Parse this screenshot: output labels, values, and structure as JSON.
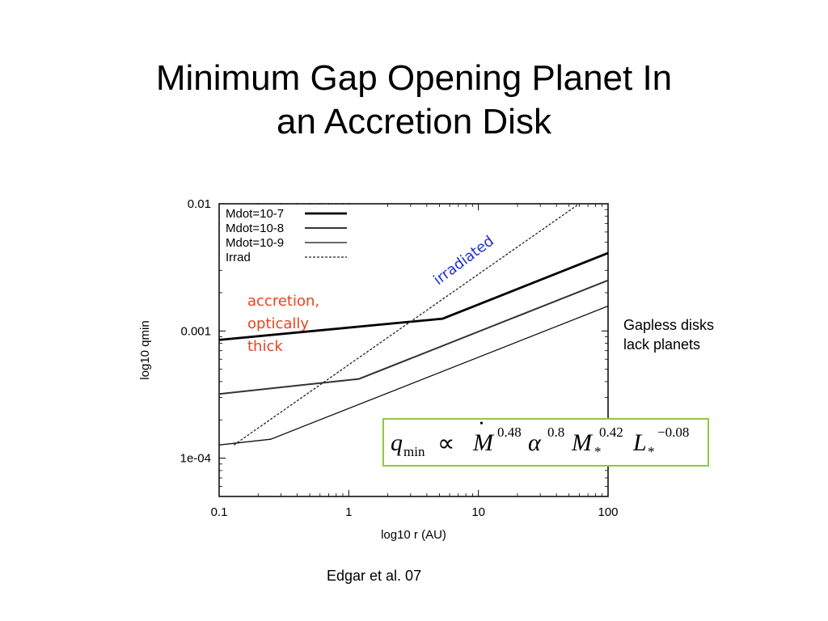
{
  "slide": {
    "title_line1": "Minimum Gap Opening Planet In",
    "title_line2": "an Accretion Disk",
    "note_gapless_line1": "Gapless disks",
    "note_gapless_line2": "lack planets",
    "citation": "Edgar et al. 07"
  },
  "formula": {
    "q": "q",
    "q_sub": "min",
    "propto": "∝",
    "mdot": "M",
    "mdot_dot": "•",
    "mdot_exp": "0.48",
    "alpha": "α",
    "alpha_exp": "0.8",
    "mstar": "M",
    "mstar_sub": "*",
    "mstar_exp": "0.42",
    "lstar": "L",
    "lstar_sub": "*",
    "lstar_exp": "−0.08"
  },
  "chart_data": {
    "type": "line",
    "xscale": "log",
    "yscale": "log",
    "xlim": [
      0.1,
      100
    ],
    "ylim": [
      5e-05,
      0.01
    ],
    "xlabel": "log10 r (AU)",
    "ylabel": "log10 qmin",
    "x_ticks": [
      {
        "value": 0.1,
        "label": "0.1"
      },
      {
        "value": 1,
        "label": "1"
      },
      {
        "value": 10,
        "label": "10"
      },
      {
        "value": 100,
        "label": "100"
      }
    ],
    "y_ticks": [
      {
        "value": 0.01,
        "label": "0.01"
      },
      {
        "value": 0.001,
        "label": "0.001"
      },
      {
        "value": 0.0001,
        "label": "1e-04"
      }
    ],
    "legend_position": "top-left",
    "series": [
      {
        "name": "Mdot=10-7",
        "color": "#000000",
        "style": "solid",
        "weight": "thick",
        "points": [
          [
            0.1,
            0.00085
          ],
          [
            5.3,
            0.00125
          ],
          [
            100,
            0.0041
          ]
        ]
      },
      {
        "name": "Mdot=10-8",
        "color": "#333333",
        "style": "solid",
        "weight": "medium",
        "points": [
          [
            0.1,
            0.00032
          ],
          [
            1.2,
            0.00042
          ],
          [
            100,
            0.0025
          ]
        ]
      },
      {
        "name": "Mdot=10-9",
        "color": "#111111",
        "style": "solid",
        "weight": "thin",
        "points": [
          [
            0.1,
            0.000127
          ],
          [
            0.25,
            0.000141
          ],
          [
            100,
            0.00157
          ]
        ]
      },
      {
        "name": "Irrad",
        "color": "#222222",
        "style": "dashed",
        "weight": "thin",
        "points": [
          [
            0.13,
            0.000127
          ],
          [
            60,
            0.01
          ]
        ]
      }
    ],
    "annotations": [
      {
        "text": "accretion,",
        "color": "#e8421f"
      },
      {
        "text": "optically",
        "color": "#e8421f"
      },
      {
        "text": "thick",
        "color": "#e8421f"
      },
      {
        "text": "irradiated",
        "color": "#1f2fd8"
      }
    ]
  }
}
